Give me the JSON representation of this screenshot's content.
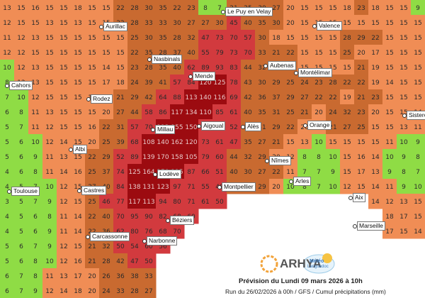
{
  "map": {
    "grid": [
      [
        13,
        15,
        16,
        15,
        15,
        18,
        15,
        15,
        22,
        28,
        30,
        35,
        22,
        23,
        8,
        7,
        21,
        25,
        30,
        27,
        20,
        15,
        15,
        15,
        18,
        23,
        18,
        15,
        15,
        9
      ],
      [
        12,
        15,
        15,
        13,
        15,
        13,
        15,
        15,
        22,
        28,
        33,
        33,
        30,
        27,
        27,
        30,
        45,
        40,
        35,
        30,
        20,
        15,
        15,
        15,
        15,
        15,
        15,
        15,
        15,
        15
      ],
      [
        11,
        12,
        13,
        15,
        15,
        15,
        15,
        15,
        15,
        25,
        30,
        35,
        28,
        32,
        47,
        73,
        70,
        57,
        30,
        18,
        15,
        15,
        15,
        15,
        28,
        29,
        22,
        15,
        15,
        15
      ],
      [
        12,
        12,
        15,
        15,
        15,
        15,
        15,
        15,
        15,
        22,
        35,
        28,
        37,
        40,
        55,
        79,
        73,
        70,
        33,
        21,
        22,
        15,
        15,
        15,
        25,
        20,
        17,
        15,
        15,
        15
      ],
      [
        10,
        12,
        13,
        15,
        15,
        15,
        15,
        14,
        15,
        23,
        28,
        35,
        40,
        62,
        89,
        93,
        83,
        44,
        32,
        29,
        25,
        15,
        15,
        15,
        15,
        21,
        19,
        15,
        15,
        15
      ],
      [
        8,
        12,
        13,
        15,
        15,
        15,
        15,
        17,
        18,
        24,
        39,
        41,
        57,
        84,
        120,
        125,
        78,
        43,
        30,
        29,
        25,
        24,
        23,
        28,
        22,
        22,
        19,
        14,
        15,
        15
      ],
      [
        7,
        10,
        12,
        15,
        15,
        15,
        15,
        19,
        21,
        29,
        42,
        64,
        88,
        113,
        140,
        116,
        69,
        42,
        36,
        37,
        29,
        27,
        22,
        22,
        19,
        21,
        23,
        15,
        15,
        15
      ],
      [
        6,
        8,
        11,
        13,
        15,
        15,
        15,
        20,
        27,
        44,
        58,
        86,
        117,
        134,
        110,
        85,
        61,
        40,
        35,
        31,
        25,
        21,
        20,
        24,
        32,
        23,
        20,
        15,
        15,
        14
      ],
      [
        5,
        7,
        11,
        12,
        15,
        15,
        16,
        22,
        31,
        57,
        70,
        112,
        155,
        150,
        91,
        67,
        52,
        38,
        31,
        29,
        22,
        20,
        20,
        21,
        27,
        25,
        15,
        15,
        13,
        11
      ],
      [
        5,
        6,
        10,
        12,
        14,
        15,
        20,
        25,
        39,
        68,
        108,
        140,
        162,
        120,
        73,
        61,
        47,
        35,
        27,
        21,
        15,
        13,
        10,
        15,
        15,
        15,
        15,
        11,
        10,
        9
      ],
      [
        5,
        6,
        9,
        11,
        13,
        15,
        22,
        29,
        52,
        89,
        139,
        170,
        158,
        105,
        79,
        60,
        44,
        32,
        29,
        20,
        12,
        8,
        8,
        10,
        15,
        16,
        14,
        10,
        9,
        8
      ],
      [
        4,
        6,
        8,
        11,
        14,
        16,
        25,
        37,
        74,
        125,
        164,
        150,
        115,
        87,
        66,
        51,
        40,
        30,
        27,
        22,
        11,
        7,
        7,
        9,
        15,
        17,
        13,
        9,
        8,
        7
      ],
      [
        4,
        5,
        7,
        10,
        12,
        15,
        27,
        40,
        84,
        138,
        131,
        123,
        97,
        71,
        55,
        48,
        40,
        36,
        29,
        20,
        10,
        8,
        7,
        10,
        12,
        15,
        14,
        11,
        9,
        10
      ],
      [
        3,
        5,
        7,
        9,
        12,
        15,
        25,
        46,
        77,
        117,
        113,
        94,
        80,
        71,
        61,
        50,
        null,
        null,
        null,
        null,
        null,
        null,
        null,
        null,
        null,
        null,
        14,
        12,
        13,
        15
      ],
      [
        4,
        5,
        6,
        8,
        11,
        14,
        22,
        40,
        70,
        95,
        90,
        82,
        68,
        60,
        null,
        null,
        null,
        null,
        null,
        null,
        null,
        null,
        null,
        null,
        null,
        null,
        null,
        18,
        17,
        15
      ],
      [
        4,
        5,
        6,
        9,
        11,
        14,
        22,
        36,
        62,
        80,
        76,
        68,
        70,
        null,
        null,
        null,
        null,
        null,
        null,
        null,
        null,
        null,
        null,
        null,
        null,
        null,
        null,
        17,
        15,
        14
      ],
      [
        5,
        6,
        7,
        9,
        12,
        15,
        21,
        32,
        50,
        54,
        60,
        56,
        null,
        null,
        null,
        null,
        null,
        null,
        null,
        null,
        null,
        null,
        null,
        null,
        null,
        null,
        null,
        null,
        null,
        null
      ],
      [
        5,
        6,
        8,
        10,
        12,
        16,
        21,
        28,
        42,
        47,
        50,
        null,
        null,
        null,
        null,
        null,
        null,
        null,
        null,
        null,
        null,
        null,
        null,
        null,
        null,
        null,
        null,
        null,
        null,
        null
      ],
      [
        6,
        7,
        8,
        11,
        13,
        17,
        20,
        26,
        36,
        38,
        33,
        null,
        null,
        null,
        null,
        null,
        null,
        null,
        null,
        null,
        null,
        null,
        null,
        null,
        null,
        null,
        null,
        null,
        null,
        null
      ],
      [
        6,
        7,
        9,
        12,
        14,
        18,
        20,
        24,
        33,
        28,
        27,
        null,
        null,
        null,
        null,
        null,
        null,
        null,
        null,
        null,
        null,
        null,
        null,
        null,
        null,
        null,
        null,
        null,
        null,
        null
      ]
    ],
    "color_scale": [
      {
        "from": 0,
        "color": "#8fdc45"
      },
      {
        "from": 11,
        "color": "#f08d55"
      },
      {
        "from": 21,
        "color": "#c96a30"
      },
      {
        "from": 45,
        "color": "#d23a3e"
      },
      {
        "from": 100,
        "color": "#9c0b10"
      }
    ],
    "cities": [
      "Aurillac",
      "Le Puy en Velay",
      "Valence",
      "Nasbinals",
      "Aubenas",
      "Montélimar",
      "Mende",
      "Cahors",
      "Rodez",
      "Sisteron",
      "Millau",
      "Aigoual",
      "Alès",
      "Orange",
      "Albi",
      "Nîmes",
      "Lodève",
      "Arles",
      "Montpellier",
      "Toulouse",
      "Castres",
      "Aix",
      "Béziers",
      "Carcassonne",
      "Marseille",
      "Narbonne"
    ]
  },
  "footer": {
    "logo_1": "ARHYA",
    "logo_2_top": "Météo",
    "logo_2_bottom": "Languedoc",
    "title": "Prévision du Lundi 09 mars 2026 à 10h",
    "subtitle": "Run du 26/02/2026 à 00h / GFS / Cumul précipitations (mm)"
  }
}
